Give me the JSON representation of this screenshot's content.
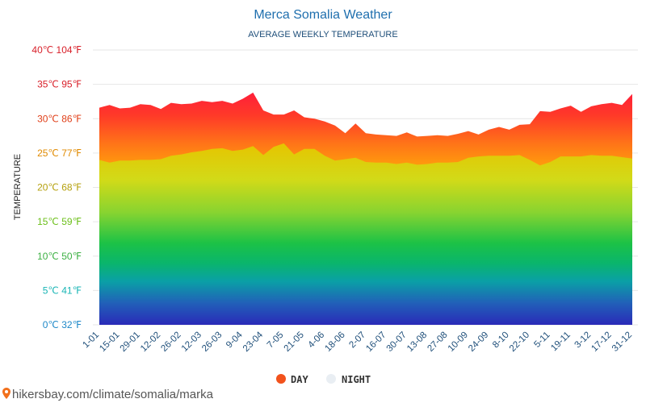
{
  "chart_data": {
    "type": "area",
    "title": "Merca Somalia Weather",
    "subtitle": "AVERAGE WEEKLY TEMPERATURE",
    "ylabel": "TEMPERATURE",
    "ylim": [
      0,
      40
    ],
    "y_ticks": [
      {
        "value": 0,
        "label": "0℃ 32℉",
        "color": "#1e88c8"
      },
      {
        "value": 5,
        "label": "5℃ 41℉",
        "color": "#19b5b5"
      },
      {
        "value": 10,
        "label": "10℃ 50℉",
        "color": "#3cb043"
      },
      {
        "value": 15,
        "label": "15℃ 59℉",
        "color": "#6cbf1a"
      },
      {
        "value": 20,
        "label": "20℃ 68℉",
        "color": "#b5a10f"
      },
      {
        "value": 25,
        "label": "25℃ 77℉",
        "color": "#e08a00"
      },
      {
        "value": 30,
        "label": "30℃ 86℉",
        "color": "#e0401a"
      },
      {
        "value": 35,
        "label": "35℃ 95℉",
        "color": "#d8202a"
      },
      {
        "value": 40,
        "label": "40℃ 104℉",
        "color": "#d8202a"
      }
    ],
    "x_ticks": [
      "1-01",
      "15-01",
      "29-01",
      "12-02",
      "26-02",
      "12-03",
      "26-03",
      "9-04",
      "23-04",
      "7-05",
      "21-05",
      "4-06",
      "18-06",
      "2-07",
      "16-07",
      "30-07",
      "13-08",
      "27-08",
      "10-09",
      "24-09",
      "8-10",
      "22-10",
      "5-11",
      "19-11",
      "3-12",
      "17-12",
      "31-12"
    ],
    "grid": true,
    "legend_position": "bottom",
    "series": [
      {
        "name": "DAY",
        "color": "#f2521c",
        "values": [
          31.6,
          32.0,
          31.5,
          31.6,
          32.1,
          32.0,
          31.4,
          32.3,
          32.1,
          32.2,
          32.6,
          32.4,
          32.6,
          32.2,
          32.9,
          33.8,
          31.2,
          30.6,
          30.6,
          31.2,
          30.2,
          30.0,
          29.6,
          29.0,
          27.9,
          29.3,
          27.9,
          27.7,
          27.6,
          27.5,
          28.0,
          27.4,
          27.5,
          27.6,
          27.5,
          27.8,
          28.2,
          27.7,
          28.4,
          28.8,
          28.4,
          29.1,
          29.2,
          31.1,
          31.0,
          31.5,
          31.9,
          31.0,
          31.8,
          32.1,
          32.3,
          32.0,
          33.6
        ]
      },
      {
        "name": "NIGHT",
        "color": "#e9eef3",
        "values": [
          24.0,
          23.6,
          23.9,
          23.9,
          24.0,
          24.0,
          24.1,
          24.6,
          24.8,
          25.1,
          25.3,
          25.6,
          25.7,
          25.3,
          25.5,
          26.0,
          24.7,
          25.9,
          26.4,
          24.8,
          25.6,
          25.6,
          24.6,
          23.9,
          24.1,
          24.3,
          23.7,
          23.6,
          23.6,
          23.4,
          23.6,
          23.3,
          23.4,
          23.6,
          23.6,
          23.7,
          24.3,
          24.5,
          24.6,
          24.6,
          24.6,
          24.7,
          24.0,
          23.2,
          23.7,
          24.5,
          24.5,
          24.5,
          24.7,
          24.6,
          24.6,
          24.4,
          24.2
        ]
      }
    ]
  },
  "legend": {
    "day_label": "DAY",
    "night_label": "NIGHT"
  },
  "footer": {
    "text": "hikersbay.com/climate/somalia/marka"
  }
}
